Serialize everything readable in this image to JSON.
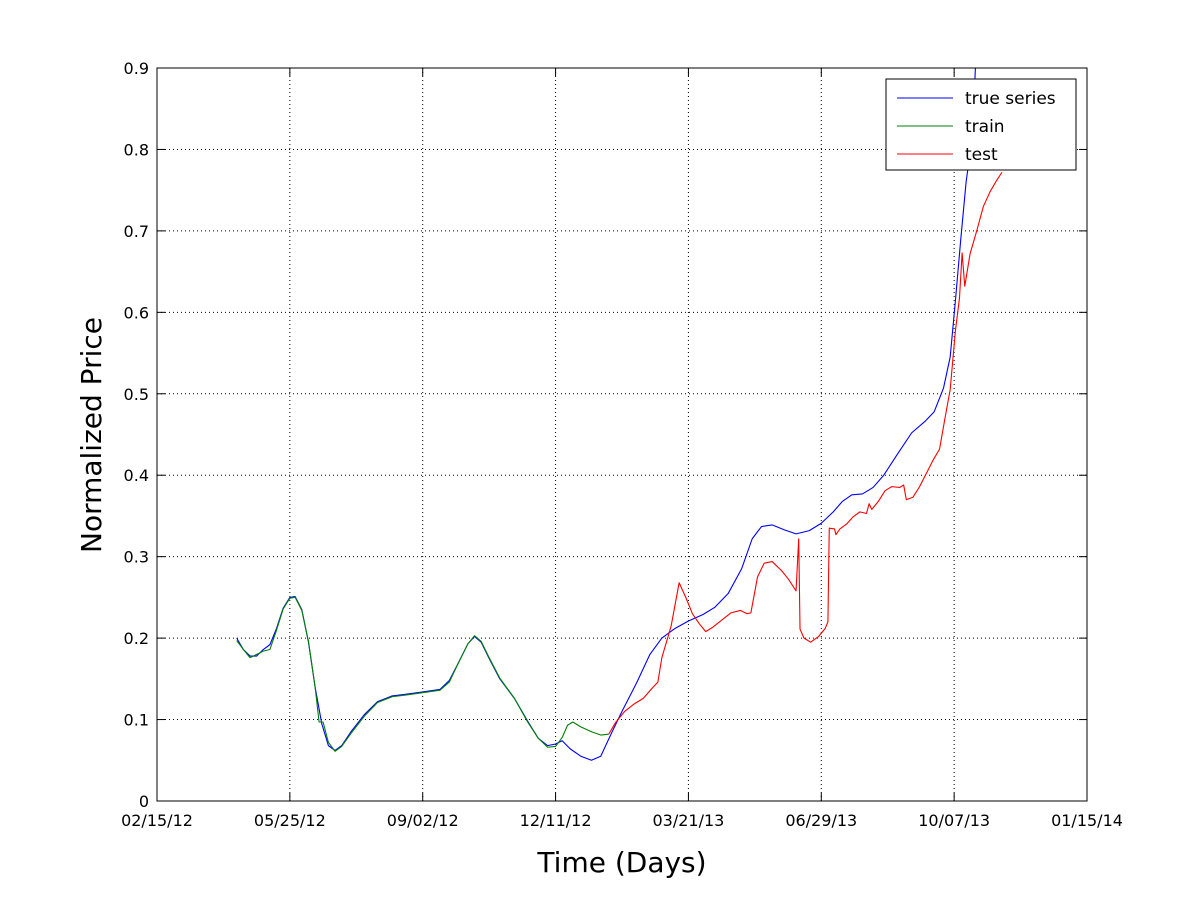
{
  "chart_data": {
    "type": "line",
    "title": "",
    "xlabel": "Time (Days)",
    "ylabel": "Normalized Price",
    "x_is_date": true,
    "xlim": [
      "2012-02-15",
      "2014-01-15"
    ],
    "ylim": [
      0,
      0.9
    ],
    "x_ticks": [
      {
        "date": "2012-02-15",
        "label": "02/15/12"
      },
      {
        "date": "2012-05-25",
        "label": "05/25/12"
      },
      {
        "date": "2012-09-02",
        "label": "09/02/12"
      },
      {
        "date": "2012-12-11",
        "label": "12/11/12"
      },
      {
        "date": "2013-03-21",
        "label": "03/21/13"
      },
      {
        "date": "2013-06-29",
        "label": "06/29/13"
      },
      {
        "date": "2013-10-07",
        "label": "10/07/13"
      },
      {
        "date": "2014-01-15",
        "label": "01/15/14"
      }
    ],
    "y_ticks": [
      {
        "value": 0,
        "label": "0"
      },
      {
        "value": 0.1,
        "label": "0.1"
      },
      {
        "value": 0.2,
        "label": "0.2"
      },
      {
        "value": 0.3,
        "label": "0.3"
      },
      {
        "value": 0.4,
        "label": "0.4"
      },
      {
        "value": 0.5,
        "label": "0.5"
      },
      {
        "value": 0.6,
        "label": "0.6"
      },
      {
        "value": 0.7,
        "label": "0.7"
      },
      {
        "value": 0.8,
        "label": "0.8"
      },
      {
        "value": 0.9,
        "label": "0.9"
      }
    ],
    "grid": true,
    "legend_position": "top-right",
    "series": [
      {
        "name": "true series",
        "color": "#0000ff",
        "points": [
          [
            "2012-04-15",
            0.2
          ],
          [
            "2012-04-20",
            0.186
          ],
          [
            "2012-04-25",
            0.178
          ],
          [
            "2012-04-30",
            0.178
          ],
          [
            "2012-05-05",
            0.186
          ],
          [
            "2012-05-10",
            0.192
          ],
          [
            "2012-05-15",
            0.212
          ],
          [
            "2012-05-20",
            0.237
          ],
          [
            "2012-05-25",
            0.25
          ],
          [
            "2012-05-29",
            0.251
          ],
          [
            "2012-06-03",
            0.235
          ],
          [
            "2012-06-08",
            0.195
          ],
          [
            "2012-06-13",
            0.14
          ],
          [
            "2012-06-18",
            0.095
          ],
          [
            "2012-06-23",
            0.068
          ],
          [
            "2012-06-28",
            0.062
          ],
          [
            "2012-07-03",
            0.068
          ],
          [
            "2012-07-10",
            0.085
          ],
          [
            "2012-07-20",
            0.106
          ],
          [
            "2012-07-30",
            0.122
          ],
          [
            "2012-08-10",
            0.129
          ],
          [
            "2012-08-20",
            0.131
          ],
          [
            "2012-09-02",
            0.134
          ],
          [
            "2012-09-15",
            0.137
          ],
          [
            "2012-09-22",
            0.148
          ],
          [
            "2012-09-29",
            0.17
          ],
          [
            "2012-10-06",
            0.193
          ],
          [
            "2012-10-11",
            0.202
          ],
          [
            "2012-10-16",
            0.195
          ],
          [
            "2012-10-22",
            0.175
          ],
          [
            "2012-10-30",
            0.15
          ],
          [
            "2012-11-10",
            0.126
          ],
          [
            "2012-11-20",
            0.098
          ],
          [
            "2012-11-28",
            0.077
          ],
          [
            "2012-12-05",
            0.068
          ],
          [
            "2012-12-11",
            0.07
          ],
          [
            "2012-12-16",
            0.074
          ],
          [
            "2012-12-22",
            0.064
          ],
          [
            "2012-12-30",
            0.055
          ],
          [
            "2013-01-07",
            0.05
          ],
          [
            "2013-01-14",
            0.055
          ],
          [
            "2013-01-22",
            0.083
          ],
          [
            "2013-01-30",
            0.11
          ],
          [
            "2013-02-10",
            0.145
          ],
          [
            "2013-02-20",
            0.18
          ],
          [
            "2013-03-01",
            0.2
          ],
          [
            "2013-03-11",
            0.212
          ],
          [
            "2013-03-21",
            0.221
          ],
          [
            "2013-04-01",
            0.229
          ],
          [
            "2013-04-10",
            0.238
          ],
          [
            "2013-04-20",
            0.255
          ],
          [
            "2013-04-30",
            0.285
          ],
          [
            "2013-05-08",
            0.322
          ],
          [
            "2013-05-15",
            0.337
          ],
          [
            "2013-05-23",
            0.339
          ],
          [
            "2013-06-01",
            0.333
          ],
          [
            "2013-06-10",
            0.328
          ],
          [
            "2013-06-20",
            0.332
          ],
          [
            "2013-06-29",
            0.341
          ],
          [
            "2013-07-08",
            0.355
          ],
          [
            "2013-07-15",
            0.368
          ],
          [
            "2013-07-22",
            0.376
          ],
          [
            "2013-07-30",
            0.377
          ],
          [
            "2013-08-07",
            0.385
          ],
          [
            "2013-08-15",
            0.4
          ],
          [
            "2013-08-25",
            0.425
          ],
          [
            "2013-09-05",
            0.452
          ],
          [
            "2013-09-15",
            0.466
          ],
          [
            "2013-09-22",
            0.478
          ],
          [
            "2013-09-29",
            0.507
          ],
          [
            "2013-10-04",
            0.545
          ],
          [
            "2013-10-08",
            0.615
          ],
          [
            "2013-10-12",
            0.69
          ],
          [
            "2013-10-16",
            0.76
          ],
          [
            "2013-10-21",
            0.82
          ],
          [
            "2013-10-23",
            0.9
          ]
        ]
      },
      {
        "name": "train",
        "color": "#008000",
        "points": [
          [
            "2012-04-15",
            0.197
          ],
          [
            "2012-04-20",
            0.186
          ],
          [
            "2012-04-25",
            0.176
          ],
          [
            "2012-04-30",
            0.18
          ],
          [
            "2012-05-05",
            0.184
          ],
          [
            "2012-05-10",
            0.186
          ],
          [
            "2012-05-15",
            0.21
          ],
          [
            "2012-05-20",
            0.236
          ],
          [
            "2012-05-25",
            0.249
          ],
          [
            "2012-05-29",
            0.25
          ],
          [
            "2012-06-03",
            0.234
          ],
          [
            "2012-06-08",
            0.196
          ],
          [
            "2012-06-13",
            0.14
          ],
          [
            "2012-06-16",
            0.097
          ],
          [
            "2012-06-19",
            0.097
          ],
          [
            "2012-06-23",
            0.072
          ],
          [
            "2012-06-28",
            0.061
          ],
          [
            "2012-07-03",
            0.067
          ],
          [
            "2012-07-10",
            0.083
          ],
          [
            "2012-07-20",
            0.104
          ],
          [
            "2012-07-30",
            0.121
          ],
          [
            "2012-08-10",
            0.128
          ],
          [
            "2012-08-20",
            0.13
          ],
          [
            "2012-09-02",
            0.133
          ],
          [
            "2012-09-15",
            0.136
          ],
          [
            "2012-09-22",
            0.146
          ],
          [
            "2012-09-29",
            0.17
          ],
          [
            "2012-10-06",
            0.193
          ],
          [
            "2012-10-11",
            0.203
          ],
          [
            "2012-10-16",
            0.196
          ],
          [
            "2012-10-22",
            0.176
          ],
          [
            "2012-10-30",
            0.151
          ],
          [
            "2012-11-10",
            0.126
          ],
          [
            "2012-11-20",
            0.097
          ],
          [
            "2012-11-28",
            0.077
          ],
          [
            "2012-12-05",
            0.066
          ],
          [
            "2012-12-11",
            0.067
          ],
          [
            "2012-12-16",
            0.078
          ],
          [
            "2012-12-20",
            0.093
          ],
          [
            "2012-12-24",
            0.097
          ],
          [
            "2012-12-30",
            0.091
          ],
          [
            "2013-01-07",
            0.085
          ],
          [
            "2013-01-14",
            0.081
          ],
          [
            "2013-01-20",
            0.082
          ]
        ]
      },
      {
        "name": "test",
        "color": "#ff0000",
        "points": [
          [
            "2013-01-20",
            0.082
          ],
          [
            "2013-01-25",
            0.096
          ],
          [
            "2013-02-01",
            0.11
          ],
          [
            "2013-02-08",
            0.119
          ],
          [
            "2013-02-15",
            0.126
          ],
          [
            "2013-02-22",
            0.139
          ],
          [
            "2013-02-26",
            0.146
          ],
          [
            "2013-03-01",
            0.176
          ],
          [
            "2013-03-08",
            0.215
          ],
          [
            "2013-03-14",
            0.268
          ],
          [
            "2013-03-19",
            0.25
          ],
          [
            "2013-03-24",
            0.23
          ],
          [
            "2013-03-29",
            0.218
          ],
          [
            "2013-04-03",
            0.208
          ],
          [
            "2013-04-08",
            0.213
          ],
          [
            "2013-04-15",
            0.222
          ],
          [
            "2013-04-22",
            0.231
          ],
          [
            "2013-04-29",
            0.234
          ],
          [
            "2013-05-04",
            0.23
          ],
          [
            "2013-05-07",
            0.231
          ],
          [
            "2013-05-12",
            0.275
          ],
          [
            "2013-05-17",
            0.292
          ],
          [
            "2013-05-23",
            0.294
          ],
          [
            "2013-05-30",
            0.283
          ],
          [
            "2013-06-04",
            0.273
          ],
          [
            "2013-06-10",
            0.258
          ],
          [
            "2013-06-12",
            0.322
          ],
          [
            "2013-06-13",
            0.211
          ],
          [
            "2013-06-16",
            0.2
          ],
          [
            "2013-06-21",
            0.195
          ],
          [
            "2013-06-27",
            0.202
          ],
          [
            "2013-07-02",
            0.212
          ],
          [
            "2013-07-04",
            0.22
          ],
          [
            "2013-07-05",
            0.335
          ],
          [
            "2013-07-09",
            0.334
          ],
          [
            "2013-07-10",
            0.327
          ],
          [
            "2013-07-13",
            0.334
          ],
          [
            "2013-07-18",
            0.34
          ],
          [
            "2013-07-23",
            0.349
          ],
          [
            "2013-07-28",
            0.355
          ],
          [
            "2013-08-02",
            0.353
          ],
          [
            "2013-08-04",
            0.365
          ],
          [
            "2013-08-06",
            0.358
          ],
          [
            "2013-08-11",
            0.368
          ],
          [
            "2013-08-16",
            0.381
          ],
          [
            "2013-08-21",
            0.386
          ],
          [
            "2013-08-27",
            0.385
          ],
          [
            "2013-08-30",
            0.388
          ],
          [
            "2013-09-01",
            0.37
          ],
          [
            "2013-09-06",
            0.373
          ],
          [
            "2013-09-11",
            0.386
          ],
          [
            "2013-09-16",
            0.402
          ],
          [
            "2013-09-21",
            0.418
          ],
          [
            "2013-09-26",
            0.432
          ],
          [
            "2013-09-30",
            0.469
          ],
          [
            "2013-10-04",
            0.505
          ],
          [
            "2013-10-08",
            0.578
          ],
          [
            "2013-10-11",
            0.617
          ],
          [
            "2013-10-13",
            0.673
          ],
          [
            "2013-10-15",
            0.632
          ],
          [
            "2013-10-19",
            0.672
          ],
          [
            "2013-10-24",
            0.7
          ],
          [
            "2013-10-29",
            0.73
          ],
          [
            "2013-11-03",
            0.748
          ],
          [
            "2013-11-08",
            0.762
          ],
          [
            "2013-11-12",
            0.772
          ]
        ]
      }
    ]
  }
}
